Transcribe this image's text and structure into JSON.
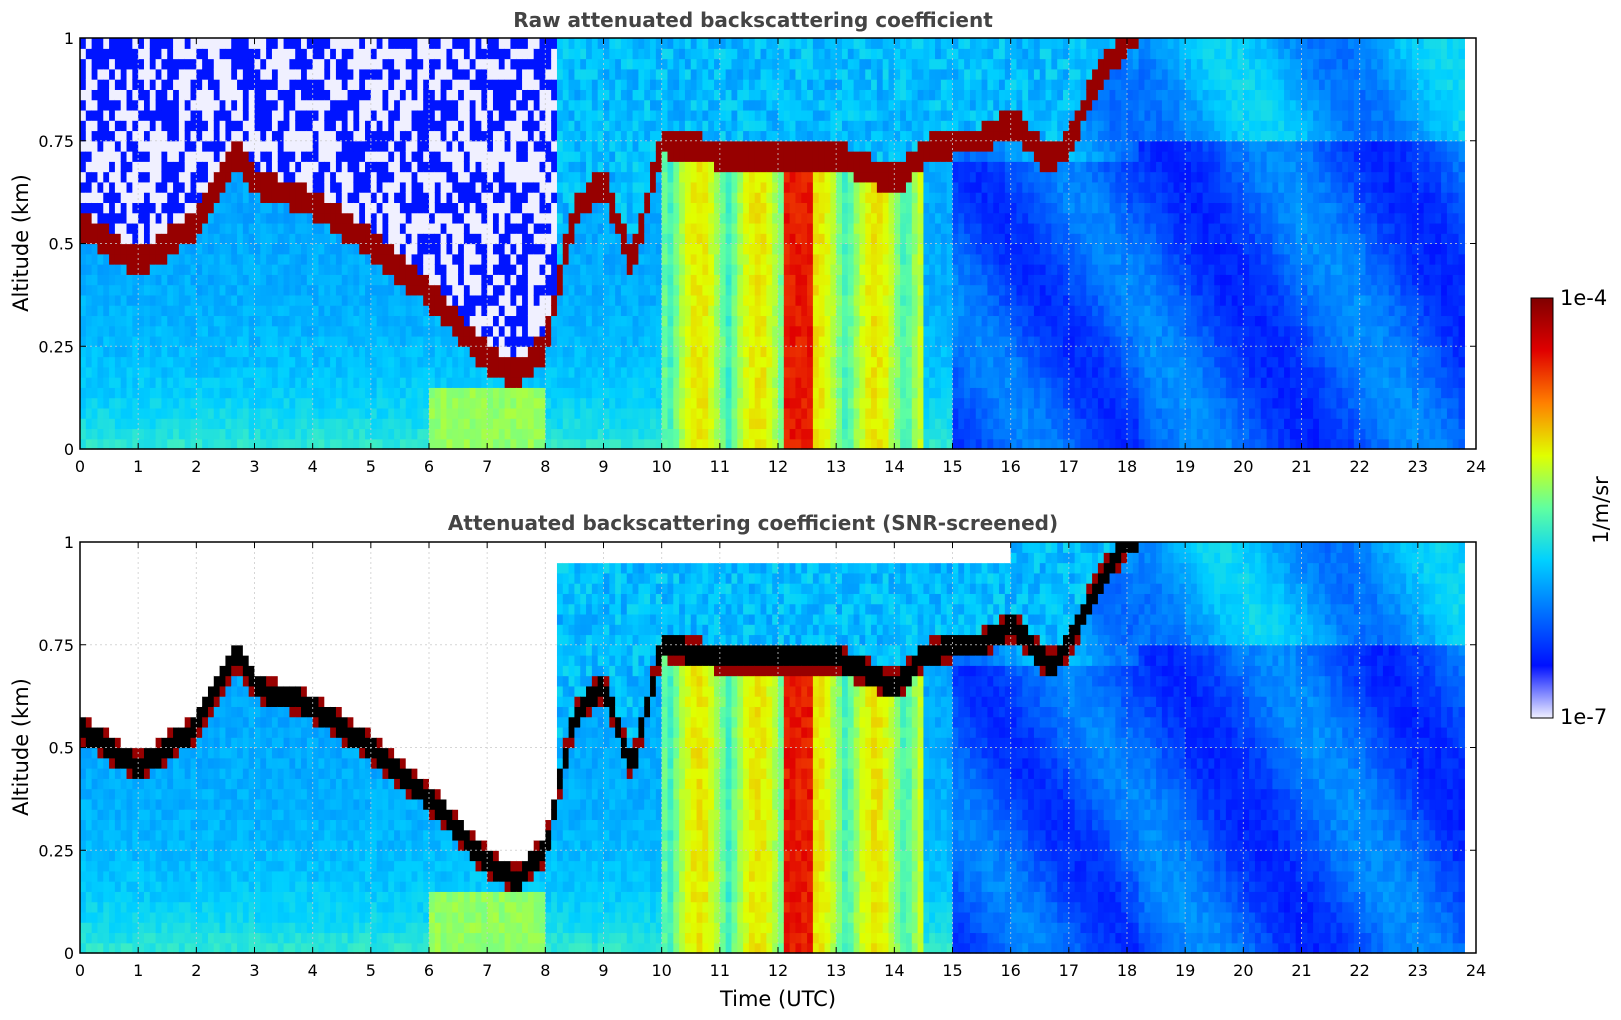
{
  "chart_data": [
    {
      "type": "heatmap",
      "title": "Raw attenuated backscattering coefficient",
      "xlabel": "",
      "ylabel": "Altitude (km)",
      "xlim": [
        0,
        24
      ],
      "ylim": [
        0,
        1
      ],
      "x_ticks": [
        "0",
        "1",
        "2",
        "3",
        "4",
        "5",
        "6",
        "7",
        "8",
        "9",
        "10",
        "11",
        "12",
        "13",
        "14",
        "15",
        "16",
        "17",
        "18",
        "19",
        "20",
        "21",
        "22",
        "23",
        "24"
      ],
      "y_ticks": [
        "0",
        "0.25",
        "0.5",
        "0.75",
        "1"
      ],
      "y_tick_values": [
        0,
        0.25,
        0.5,
        0.75,
        1
      ],
      "grid": true,
      "data_extent_x": [
        0,
        23.8
      ],
      "cloud_layer": {
        "description_units": "altitude (km) of strong backscatter layer vs time (UTC)",
        "time": [
          0,
          1,
          2,
          2.7,
          3,
          4,
          5,
          6,
          7,
          7.5,
          8,
          8.5,
          9,
          9.5,
          10,
          11,
          12,
          13,
          14,
          14.5,
          15,
          15.5,
          16,
          16.7,
          17,
          17.5,
          18
        ],
        "altitude": [
          0.55,
          0.45,
          0.55,
          0.73,
          0.65,
          0.6,
          0.5,
          0.38,
          0.22,
          0.18,
          0.25,
          0.58,
          0.65,
          0.45,
          0.75,
          0.72,
          0.72,
          0.72,
          0.65,
          0.72,
          0.75,
          0.75,
          0.8,
          0.7,
          0.75,
          0.9,
          1.0
        ]
      },
      "noise_region": "above cloud layer from 0 to 8 UTC"
    },
    {
      "type": "heatmap",
      "title": "Attenuated backscattering coefficient (SNR-screened)",
      "xlabel": "Time (UTC)",
      "ylabel": "Altitude (km)",
      "xlim": [
        0,
        24
      ],
      "ylim": [
        0,
        1
      ],
      "x_ticks": [
        "0",
        "1",
        "2",
        "3",
        "4",
        "5",
        "6",
        "7",
        "8",
        "9",
        "10",
        "11",
        "12",
        "13",
        "14",
        "15",
        "16",
        "17",
        "18",
        "19",
        "20",
        "21",
        "22",
        "23",
        "24"
      ],
      "y_ticks": [
        "0",
        "0.25",
        "0.5",
        "0.75",
        "1"
      ],
      "y_tick_values": [
        0,
        0.25,
        0.5,
        0.75,
        1
      ],
      "grid": true,
      "data_extent_x": [
        0,
        23.8
      ],
      "cloud_layer": {
        "description_units": "altitude (km) of strong backscatter layer vs time (UTC)",
        "time": [
          0,
          1,
          2,
          2.7,
          3,
          4,
          5,
          6,
          7,
          7.5,
          8,
          8.5,
          9,
          9.5,
          10,
          11,
          12,
          13,
          14,
          14.5,
          15,
          15.5,
          16,
          16.7,
          17,
          17.5,
          18
        ],
        "altitude": [
          0.55,
          0.45,
          0.55,
          0.73,
          0.65,
          0.6,
          0.5,
          0.38,
          0.22,
          0.18,
          0.25,
          0.58,
          0.65,
          0.45,
          0.75,
          0.72,
          0.72,
          0.72,
          0.65,
          0.72,
          0.75,
          0.75,
          0.8,
          0.7,
          0.75,
          0.9,
          1.0
        ]
      },
      "screened_region": "above cloud layer removed (white)"
    }
  ],
  "colorbar": {
    "max_label": "1e-4",
    "min_label": "1e-7",
    "label": "1/m/sr",
    "scale": "log",
    "colors": [
      "#f0f0ff",
      "#0010ff",
      "#0070ff",
      "#00d0ff",
      "#60ffa0",
      "#e0ff00",
      "#ff8000",
      "#e00000",
      "#800000"
    ]
  }
}
